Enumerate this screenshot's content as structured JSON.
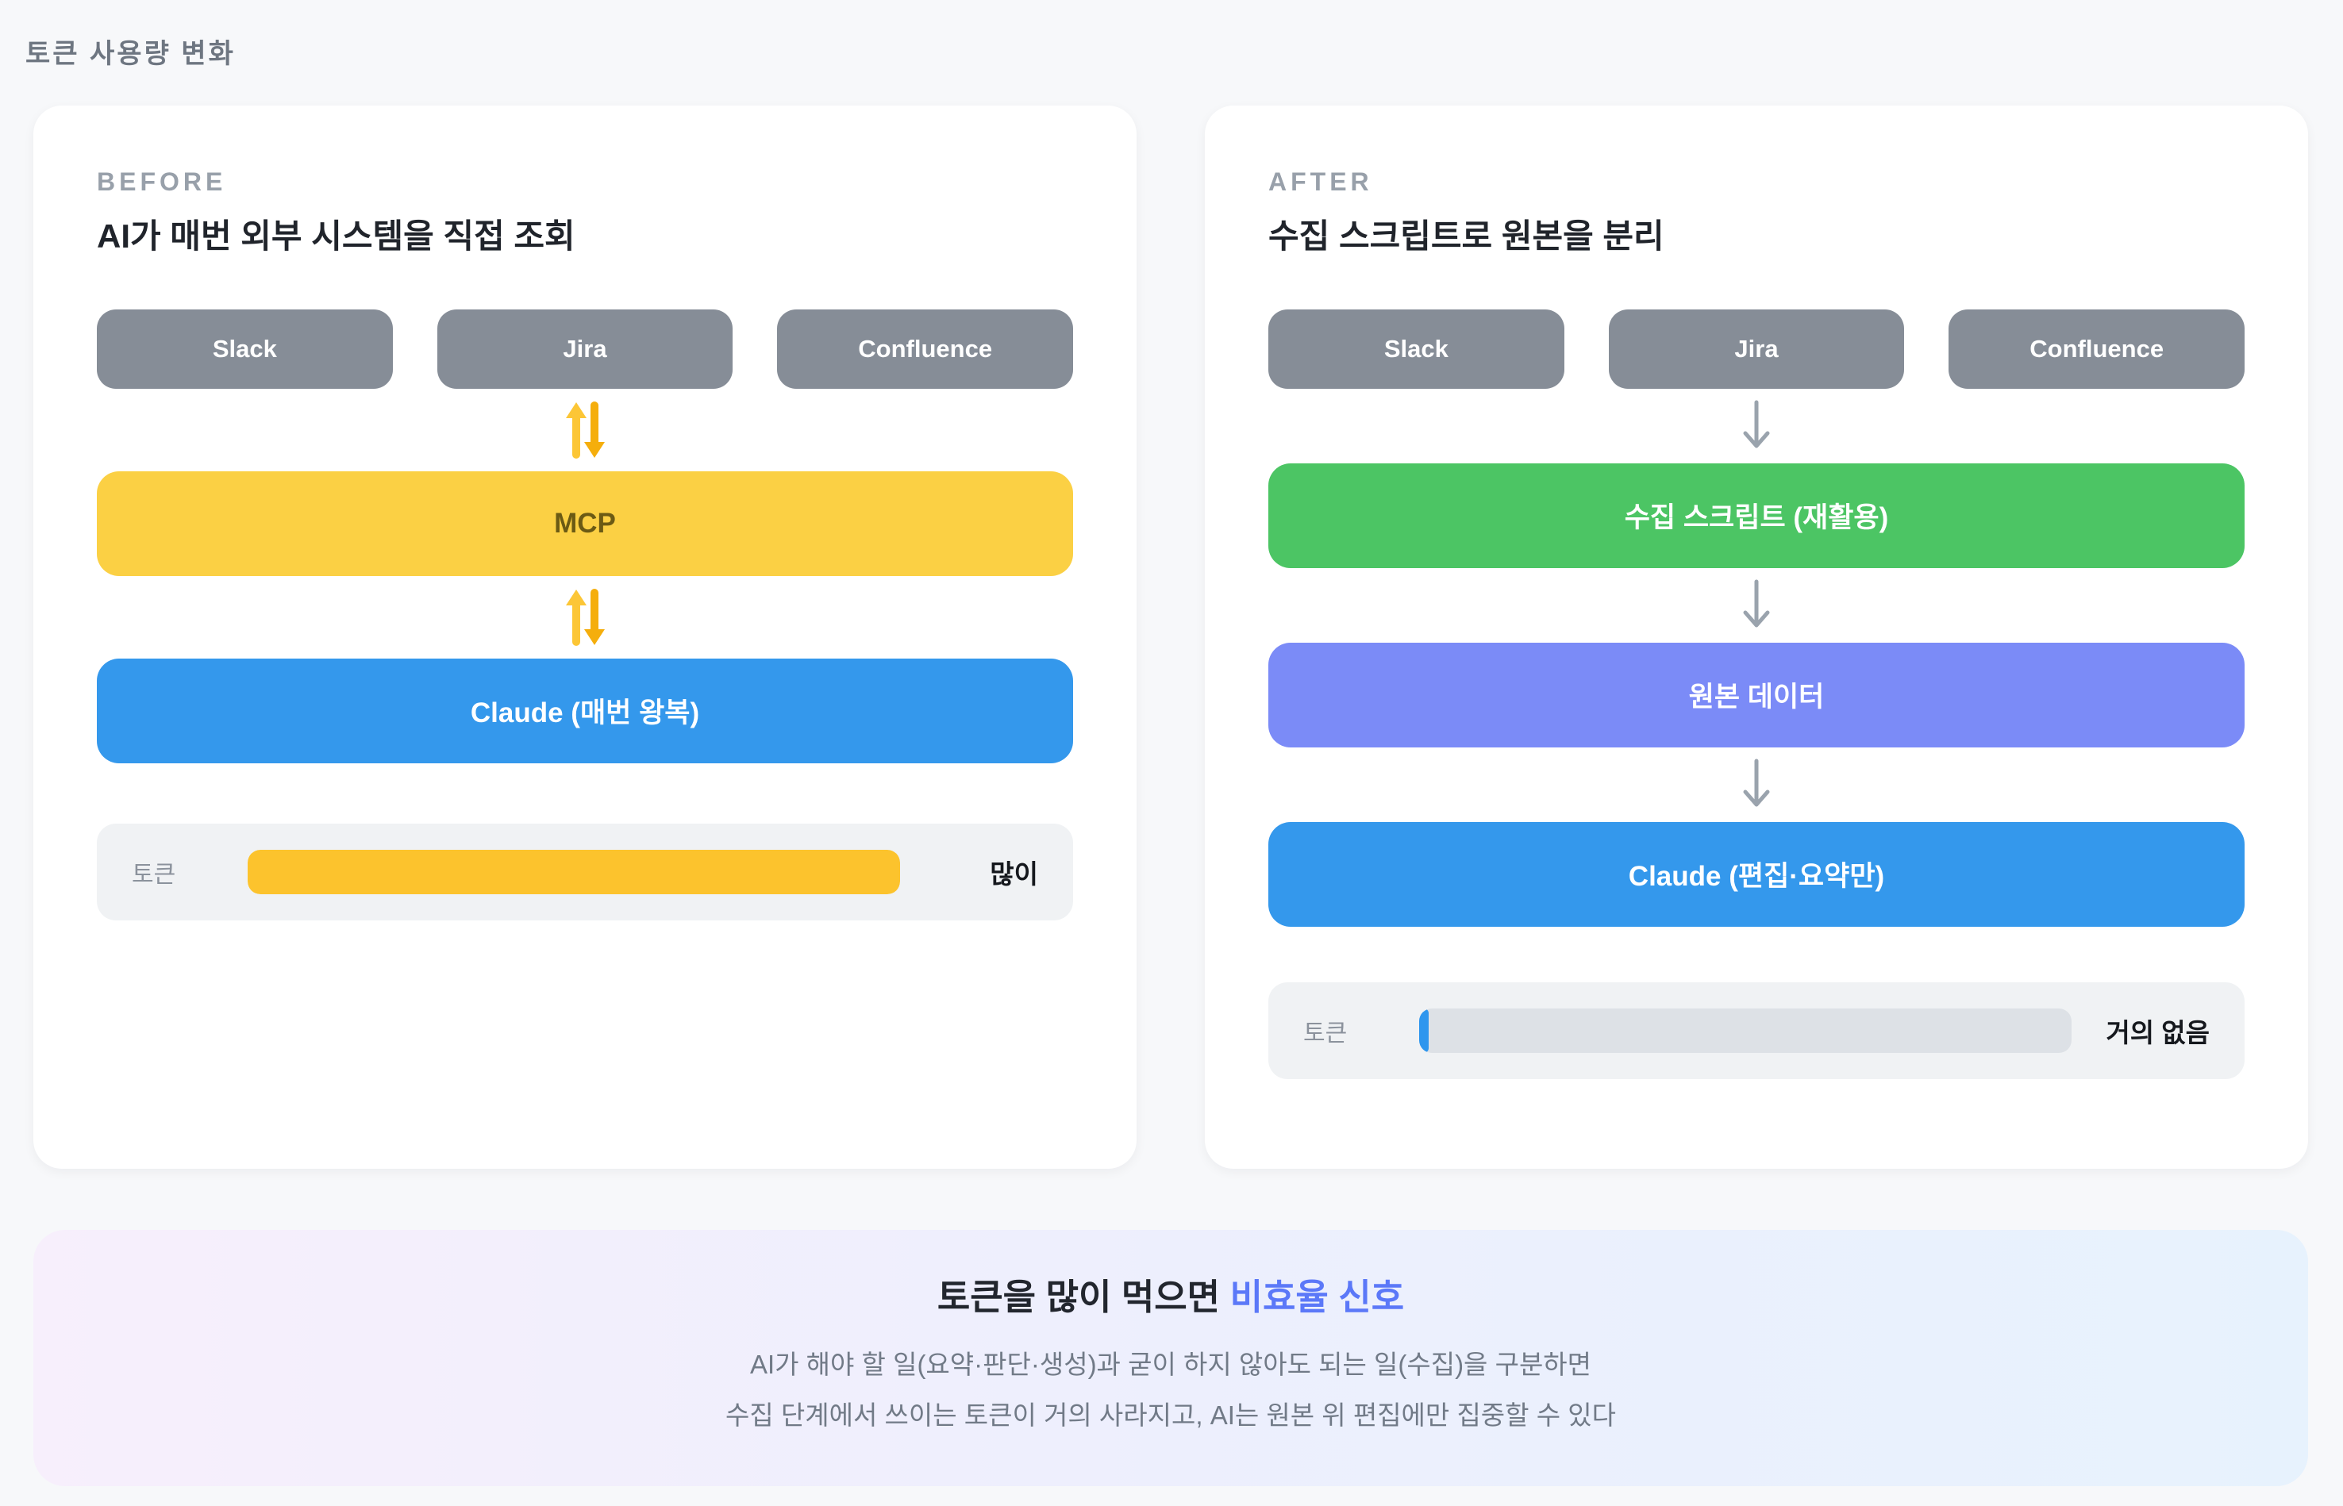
{
  "page": {
    "title": "토큰 사용량 변화"
  },
  "before": {
    "label": "BEFORE",
    "title": "AI가 매번 외부 시스템을 직접 조회",
    "sources": [
      "Slack",
      "Jira",
      "Confluence"
    ],
    "mcp_label": "MCP",
    "claude_label": "Claude (매번 왕복)",
    "token": {
      "label": "토큰",
      "amount": "많이",
      "fill_percent": 100
    }
  },
  "after": {
    "label": "AFTER",
    "title": "수집 스크립트로 원본을 분리",
    "sources": [
      "Slack",
      "Jira",
      "Confluence"
    ],
    "script_label": "수집 스크립트 (재활용)",
    "data_label": "원본 데이터",
    "claude_label": "Claude (편집·요약만)",
    "token": {
      "label": "토큰",
      "amount": "거의 없음",
      "fill_percent": 1.5
    }
  },
  "footer": {
    "title_prefix": "토큰을 많이 먹으면 ",
    "title_accent": "비효율 신호",
    "line1": "AI가 해야 할 일(요약·판단·생성)과 굳이 하지 않아도 되는 일(수집)을 구분하면",
    "line2": "수집 단계에서 쓰이는 토큰이 거의 사라지고, AI는 원본 위 편집에만 집중할 수 있다"
  },
  "colors": {
    "page_bg": "#f7f8fa",
    "card_bg": "#ffffff",
    "source_box": "#868d97",
    "mcp_yellow": "#fbd044",
    "claude_blue": "#3498ec",
    "script_green": "#4cc564",
    "data_purple": "#7b8bf7",
    "token_fill_yellow": "#fcc32d",
    "token_fill_blue": "#2e96ee",
    "accent_indigo": "#5b78f8",
    "updown_arrow_gold": "#f5b40d",
    "down_arrow_gray": "#9aa3ad"
  }
}
